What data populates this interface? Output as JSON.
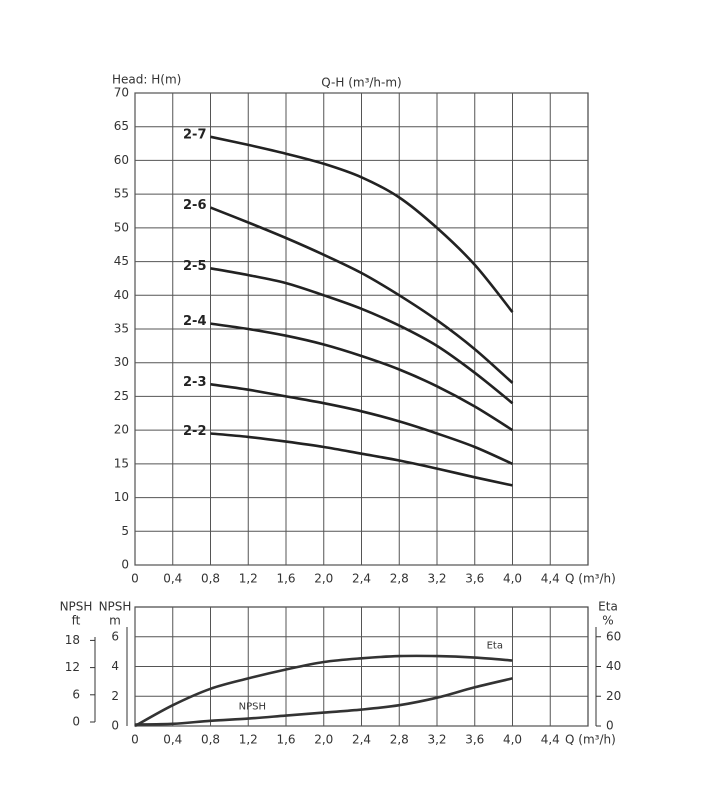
{
  "chart_data": [
    {
      "type": "line",
      "title": "Q-H (m³/h-m)",
      "y_label": "Head: H(m)",
      "x_label": "Q (m³/h)",
      "x": [
        0.8,
        1.2,
        1.6,
        2.0,
        2.4,
        2.8,
        3.2,
        3.6,
        4.0
      ],
      "series": [
        {
          "name": "2-7",
          "color": "#222222",
          "values": [
            63.5,
            62.3,
            61,
            59.5,
            57.5,
            54.5,
            50,
            44.5,
            37.5
          ]
        },
        {
          "name": "2-6",
          "color": "#222222",
          "values": [
            53,
            50.8,
            48.5,
            46,
            43.3,
            40,
            36.3,
            32,
            27
          ]
        },
        {
          "name": "2-5",
          "color": "#222222",
          "values": [
            44,
            43,
            41.8,
            40,
            38,
            35.5,
            32.5,
            28.5,
            24
          ]
        },
        {
          "name": "2-4",
          "color": "#222222",
          "values": [
            35.8,
            35,
            34,
            32.7,
            31,
            29,
            26.5,
            23.5,
            20
          ]
        },
        {
          "name": "2-3",
          "color": "#222222",
          "values": [
            26.8,
            26,
            25,
            24,
            22.8,
            21.3,
            19.5,
            17.5,
            15
          ]
        },
        {
          "name": "2-2",
          "color": "#222222",
          "values": [
            19.5,
            19,
            18.3,
            17.5,
            16.5,
            15.5,
            14.3,
            13,
            11.8
          ]
        }
      ],
      "xlim": [
        0,
        4.8
      ],
      "xticks": [
        0,
        {
          "value": 0.4,
          "label": "0,4"
        },
        {
          "value": 0.8,
          "label": "0,8"
        },
        {
          "value": 1.2,
          "label": "1,2"
        },
        {
          "value": 1.6,
          "label": "1,6"
        },
        {
          "value": 2.0,
          "label": "2,0"
        },
        {
          "value": 2.4,
          "label": "2,4"
        },
        {
          "value": 2.8,
          "label": "2,8"
        },
        {
          "value": 3.2,
          "label": "3,2"
        },
        {
          "value": 3.6,
          "label": "3,6"
        },
        {
          "value": 4.0,
          "label": "4,0"
        },
        {
          "value": 4.4,
          "label": "4,4"
        }
      ],
      "ylim": [
        0,
        70
      ],
      "yticks": [
        0,
        5,
        10,
        15,
        20,
        25,
        30,
        35,
        40,
        45,
        50,
        55,
        60,
        65,
        70
      ],
      "grid": true
    },
    {
      "type": "line",
      "x_label": "Q (m³/h)",
      "y_label": [
        "NPSH",
        "m"
      ],
      "y2_label": [
        "Eta",
        "%"
      ],
      "y3_label": [
        "NPSH",
        "ft"
      ],
      "x": [
        0,
        0.4,
        0.8,
        1.2,
        1.6,
        2.0,
        2.4,
        2.8,
        3.2,
        3.6,
        4.0
      ],
      "series": [
        {
          "name": "Eta",
          "color": "#333333",
          "axis": "y2",
          "values": [
            0,
            14,
            25,
            32,
            38,
            43,
            45.5,
            47,
            47,
            46,
            44
          ]
        },
        {
          "name": "NPSH",
          "color": "#333333",
          "values": [
            0.1,
            0.15,
            0.35,
            0.5,
            0.7,
            0.9,
            1.1,
            1.4,
            1.9,
            2.6,
            3.2
          ]
        }
      ],
      "xlim": [
        0,
        4.8
      ],
      "xticks": [
        0,
        {
          "value": 0.4,
          "label": "0,4"
        },
        {
          "value": 0.8,
          "label": "0,8"
        },
        {
          "value": 1.2,
          "label": "1,2"
        },
        {
          "value": 1.6,
          "label": "1,6"
        },
        {
          "value": 2.0,
          "label": "2,0"
        },
        {
          "value": 2.4,
          "label": "2,4"
        },
        {
          "value": 2.8,
          "label": "2,8"
        },
        {
          "value": 3.2,
          "label": "3,2"
        },
        {
          "value": 3.6,
          "label": "3,6"
        },
        {
          "value": 4.0,
          "label": "4,0"
        },
        {
          "value": 4.4,
          "label": "4,4"
        }
      ],
      "ylim": [
        0,
        8
      ],
      "yticks": [
        0,
        2,
        4,
        6
      ],
      "y2lim": [
        0,
        80
      ],
      "y2ticks": [
        0,
        20,
        40,
        60
      ],
      "y3lim": [
        0,
        26.25
      ],
      "y3ticks": [
        0,
        6,
        12,
        18
      ],
      "grid": true
    }
  ]
}
